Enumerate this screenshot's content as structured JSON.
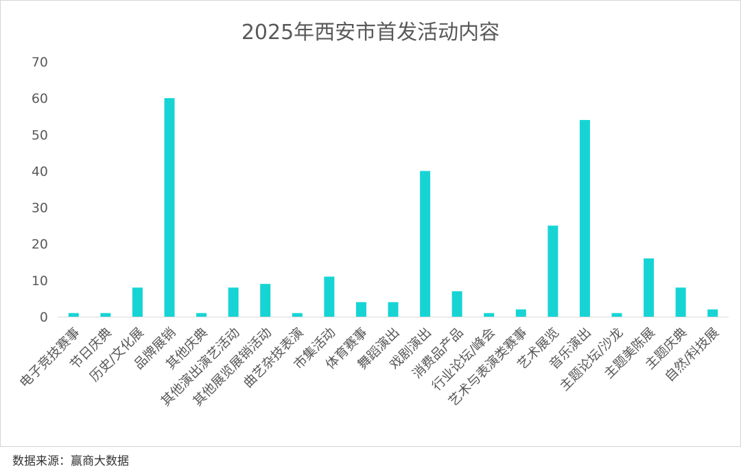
{
  "chart_data": {
    "type": "bar",
    "title": "2025年西安市首发活动内容",
    "categories": [
      "电子竞技赛事",
      "节日庆典",
      "历史/文化展",
      "品牌展销",
      "其他庆典",
      "其他演出演艺活动",
      "其他展览展销活动",
      "曲艺杂技表演",
      "市集活动",
      "体育赛事",
      "舞蹈演出",
      "戏剧演出",
      "消费品产品",
      "行业论坛/峰会",
      "艺术与表演类赛事",
      "艺术展览",
      "音乐演出",
      "主题论坛/沙龙",
      "主题美陈展",
      "主题庆典",
      "自然/科技展"
    ],
    "values": [
      1,
      1,
      8,
      60,
      1,
      8,
      9,
      1,
      11,
      4,
      4,
      40,
      7,
      1,
      2,
      25,
      54,
      1,
      16,
      8,
      2
    ],
    "ylim": [
      0,
      70
    ],
    "yticks": [
      0,
      10,
      20,
      30,
      40,
      50,
      60,
      70
    ],
    "grid": false,
    "legend": "none",
    "bar_color": "#17d4d4",
    "xlabel": "",
    "ylabel": ""
  },
  "source": "数据来源：赢商大数据"
}
